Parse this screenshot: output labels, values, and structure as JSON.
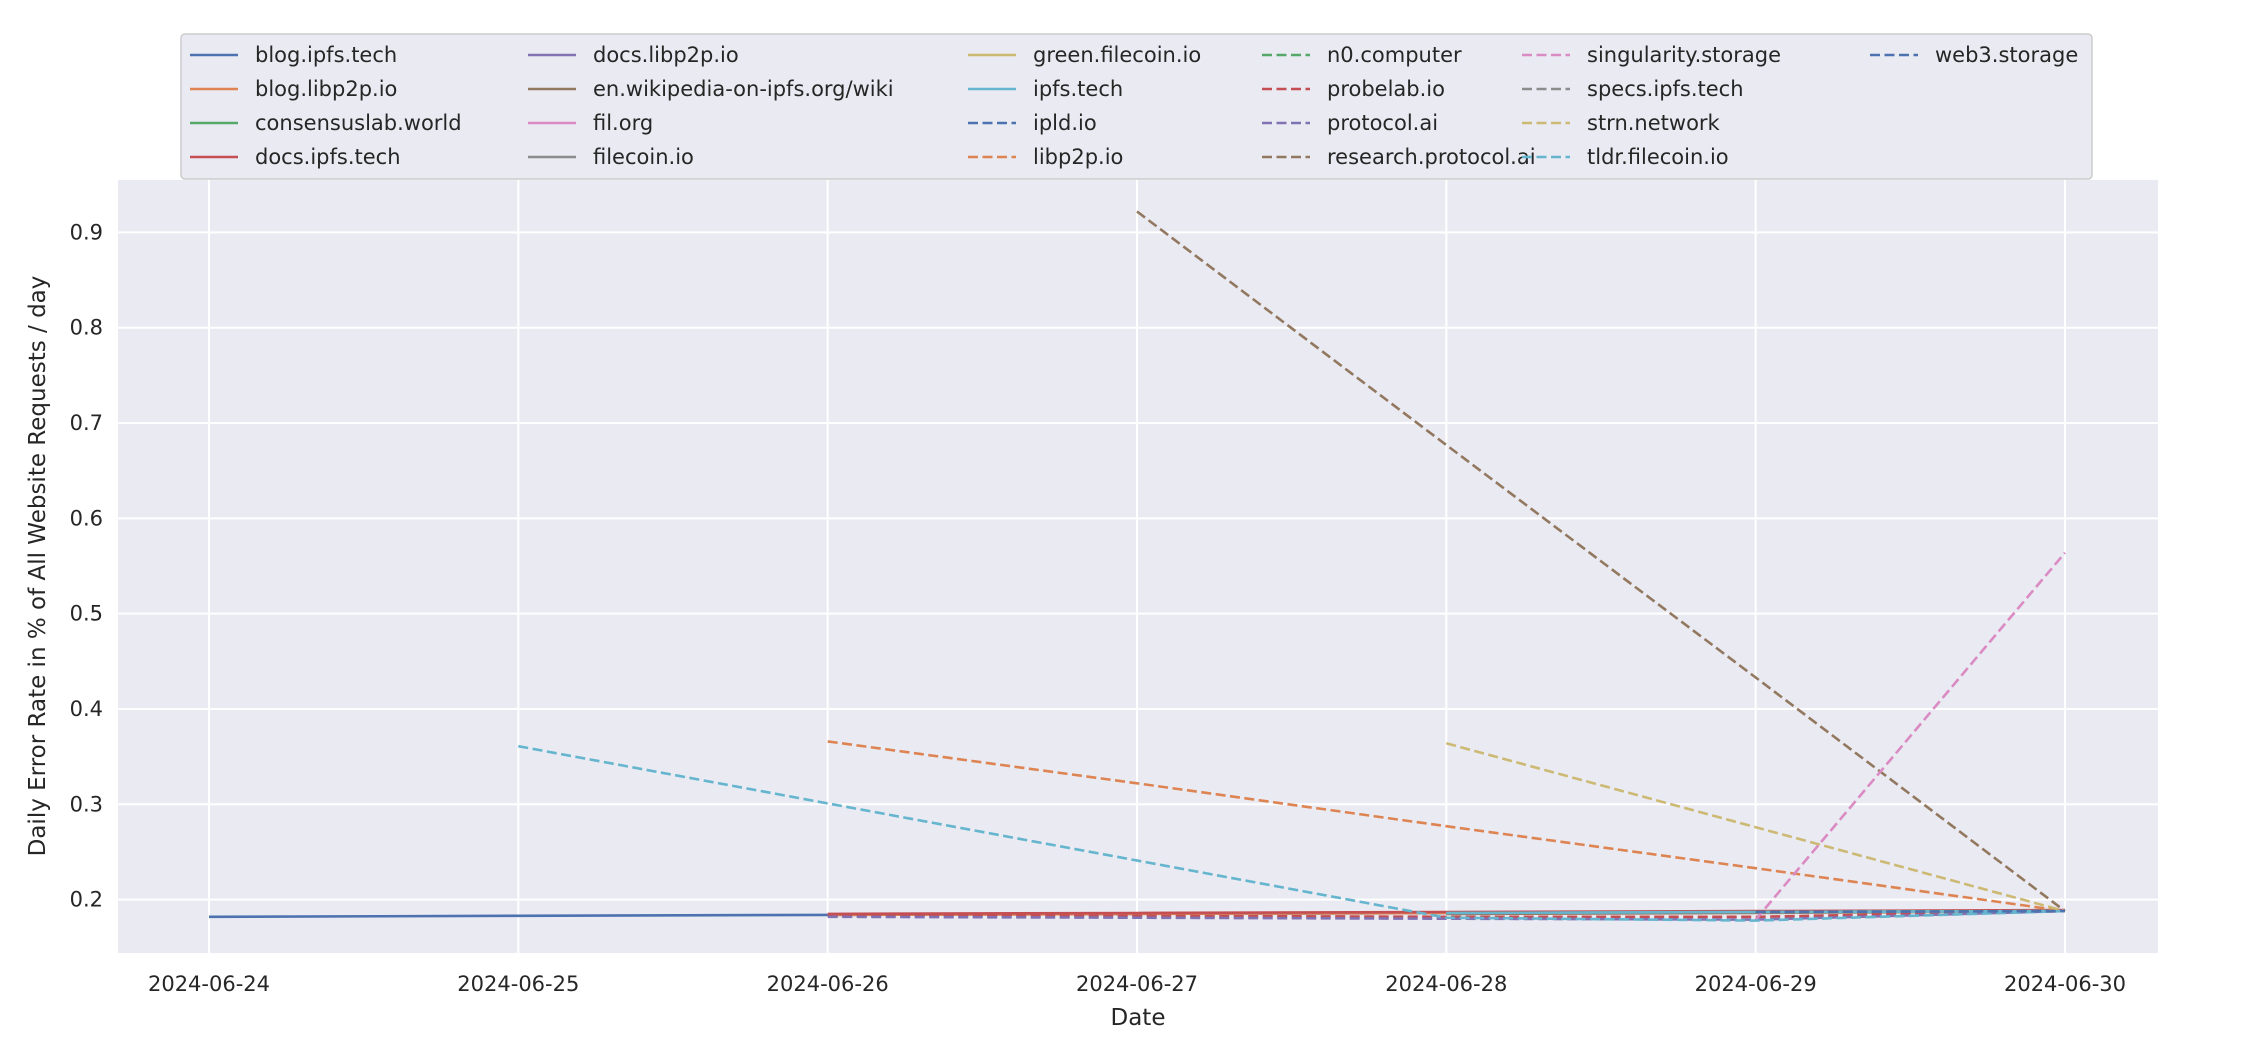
{
  "chart_data": {
    "type": "line",
    "title": "",
    "xlabel": "Date",
    "ylabel": "Daily Error Rate in % of All Website Requests / day",
    "x": [
      "2024-06-24",
      "2024-06-25",
      "2024-06-26",
      "2024-06-27",
      "2024-06-28",
      "2024-06-29",
      "2024-06-30"
    ],
    "ylim": [
      0.144,
      0.955
    ],
    "yticks": [
      0.2,
      0.3,
      0.4,
      0.5,
      0.6,
      0.7,
      0.8,
      0.9
    ],
    "grid": true,
    "legend_position": "top",
    "series": [
      {
        "name": "blog.ipfs.tech",
        "style": "solid",
        "color": "#4c72b0",
        "values": [
          0.182,
          0.183,
          0.184,
          0.185,
          0.186,
          0.187,
          0.188
        ]
      },
      {
        "name": "blog.libp2p.io",
        "style": "solid",
        "color": "#dd8452",
        "values": [
          null,
          null,
          0.184,
          0.185,
          0.186,
          0.187,
          0.188
        ]
      },
      {
        "name": "consensuslab.world",
        "style": "solid",
        "color": "#55a868",
        "values": [
          null,
          null,
          null,
          null,
          0.186,
          0.187,
          0.188
        ]
      },
      {
        "name": "docs.ipfs.tech",
        "style": "solid",
        "color": "#c44e52",
        "values": [
          null,
          null,
          0.185,
          0.186,
          0.187,
          0.188,
          0.189
        ]
      },
      {
        "name": "docs.libp2p.io",
        "style": "solid",
        "color": "#8172b3",
        "values": [
          null,
          null,
          null,
          null,
          null,
          0.187,
          0.188
        ]
      },
      {
        "name": "en.wikipedia-on-ipfs.org/wiki",
        "style": "solid",
        "color": "#937860",
        "values": [
          null,
          null,
          null,
          null,
          0.185,
          0.186,
          0.188
        ]
      },
      {
        "name": "fil.org",
        "style": "solid",
        "color": "#da8bc3",
        "values": [
          null,
          null,
          null,
          null,
          null,
          0.187,
          0.188
        ]
      },
      {
        "name": "filecoin.io",
        "style": "solid",
        "color": "#8c8c8c",
        "values": [
          null,
          null,
          null,
          null,
          0.186,
          0.187,
          0.188
        ]
      },
      {
        "name": "green.filecoin.io",
        "style": "solid",
        "color": "#ccb974",
        "values": [
          null,
          null,
          null,
          null,
          null,
          0.187,
          0.188
        ]
      },
      {
        "name": "ipfs.tech",
        "style": "solid",
        "color": "#64b5cd",
        "values": [
          null,
          null,
          null,
          null,
          0.186,
          0.187,
          0.188
        ]
      },
      {
        "name": "ipld.io",
        "style": "dashed",
        "color": "#4c72b0",
        "values": [
          null,
          null,
          null,
          null,
          null,
          0.187,
          0.188
        ]
      },
      {
        "name": "libp2p.io",
        "style": "dashed",
        "color": "#dd8452",
        "values": [
          null,
          null,
          0.366,
          0.322,
          0.277,
          0.233,
          0.188
        ]
      },
      {
        "name": "n0.computer",
        "style": "dashed",
        "color": "#55a868",
        "values": [
          null,
          null,
          null,
          null,
          null,
          0.187,
          0.188
        ]
      },
      {
        "name": "probelab.io",
        "style": "dashed",
        "color": "#c44e52",
        "values": [
          null,
          null,
          0.183,
          0.183,
          0.182,
          0.182,
          0.188
        ]
      },
      {
        "name": "protocol.ai",
        "style": "dashed",
        "color": "#8172b3",
        "values": [
          null,
          null,
          0.182,
          0.181,
          0.18,
          0.179,
          0.188
        ]
      },
      {
        "name": "research.protocol.ai",
        "style": "dashed",
        "color": "#937860",
        "values": [
          null,
          null,
          null,
          0.922,
          0.677,
          0.433,
          0.188
        ]
      },
      {
        "name": "singularity.storage",
        "style": "dashed",
        "color": "#da8bc3",
        "values": [
          null,
          null,
          null,
          null,
          null,
          0.179,
          0.564
        ]
      },
      {
        "name": "specs.ipfs.tech",
        "style": "dashed",
        "color": "#8c8c8c",
        "values": [
          null,
          null,
          null,
          null,
          null,
          0.187,
          0.188
        ]
      },
      {
        "name": "strn.network",
        "style": "dashed",
        "color": "#ccb974",
        "values": [
          null,
          null,
          null,
          null,
          0.364,
          0.276,
          0.188
        ]
      },
      {
        "name": "tldr.filecoin.io",
        "style": "dashed",
        "color": "#64b5cd",
        "values": [
          null,
          0.361,
          0.301,
          0.241,
          0.181,
          0.178,
          0.188
        ]
      },
      {
        "name": "web3.storage",
        "style": "dashed",
        "color": "#4c72b0",
        "values": [
          null,
          null,
          null,
          null,
          null,
          0.187,
          0.188
        ]
      }
    ]
  }
}
